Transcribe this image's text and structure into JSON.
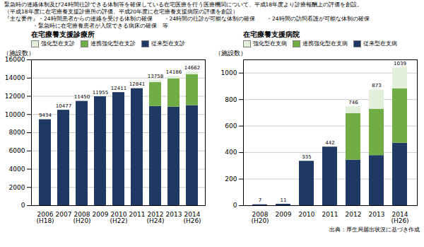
{
  "chart_data": [
    {
      "type": "bar",
      "stacked": true,
      "title": "在宅療養支援診療所",
      "ylabel": "（施設数）",
      "categories": [
        "2006\n(H18)",
        "2007",
        "2008\n(H20)",
        "2009",
        "2010\n(H22)",
        "2011",
        "2012\n(H24)",
        "2013",
        "2014\n(H26)"
      ],
      "series": [
        {
          "name": "従来型在支診",
          "color": "#1f3864",
          "values": [
            9434,
            10477,
            11450,
            11955,
            12411,
            12841,
            10890,
            10820,
            10980
          ]
        },
        {
          "name": "連携強化型在支診",
          "color": "#70ad47",
          "values": [
            0,
            0,
            0,
            0,
            0,
            0,
            2620,
            3090,
            3390
          ]
        },
        {
          "name": "強化型在支診",
          "color": "#e2efda",
          "values": [
            0,
            0,
            0,
            0,
            0,
            0,
            248,
            276,
            292
          ]
        }
      ],
      "totals": [
        9434,
        10477,
        11450,
        11955,
        12411,
        12841,
        13758,
        14186,
        14662
      ],
      "ylim": [
        0,
        16000
      ],
      "yticks": [
        0,
        2000,
        4000,
        6000,
        8000,
        10000,
        12000,
        14000,
        16000
      ],
      "grid": true,
      "legend": "upper left"
    },
    {
      "type": "bar",
      "stacked": true,
      "title": "在宅療養支援病院",
      "ylabel": "（施設数）",
      "categories": [
        "2008\n(H20)",
        "2009",
        "2010",
        "2011",
        "2012",
        "2013",
        "2014\n(H26)"
      ],
      "series": [
        {
          "name": "従来型在支病",
          "color": "#1f3864",
          "values": [
            7,
            11,
            335,
            442,
            344,
            378,
            472
          ]
        },
        {
          "name": "連携強化型在支病",
          "color": "#70ad47",
          "values": [
            0,
            0,
            0,
            0,
            352,
            350,
            410
          ]
        },
        {
          "name": "強化型在支病",
          "color": "#e2efda",
          "values": [
            0,
            0,
            0,
            0,
            50,
            145,
            157
          ]
        }
      ],
      "totals": [
        7,
        11,
        335,
        442,
        746,
        873,
        1039
      ],
      "ylim": [
        0,
        1100
      ],
      "yticks": [
        0,
        200,
        400,
        600,
        800,
        1000
      ],
      "grid": true,
      "legend": "upper left"
    }
  ],
  "annotations": [
    "緊急時の連絡体制及び24時間往診できる体制等を確保している在宅医療を行う医療機関について、平成18年度より診療報酬上の評価を創設。",
    "（平成18年度に在宅療養支援診療所の評価、平成20年度に在宅療養支援病院の評価を創設）",
    "『主な要件』・24時間患者からの連絡を受ける体制の確保　　・24時間の往診が可能な体制の確保　　・24時間の訪問看護が可能な体制の確保",
    "　　　　　・緊急時に在宅療養患者が入院できる病床の確保　等"
  ],
  "caption": "出典：厚生局届出状況に基づき作成"
}
